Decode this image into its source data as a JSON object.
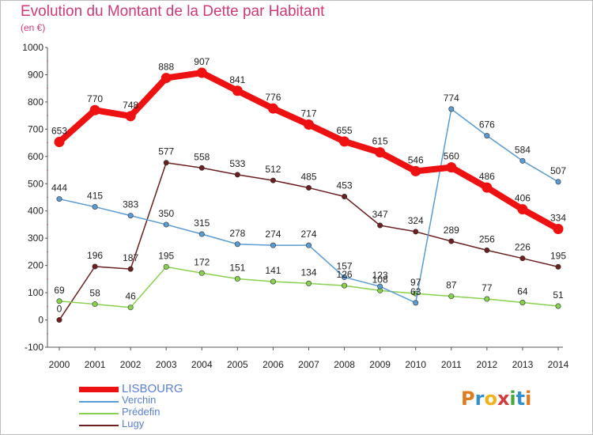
{
  "header": {
    "title": "Evolution du Montant de la Dette par Habitant",
    "subtitle": "(en €)"
  },
  "logo": {
    "text": "Proxiti",
    "letters": [
      "P",
      "r",
      "o",
      "x",
      "i",
      "t",
      "i"
    ],
    "colors": [
      "#e07a1f",
      "#2f8fd1",
      "#f2b21c",
      "#d63b3b",
      "#47a83a",
      "#2f8fd1",
      "#e07a1f"
    ]
  },
  "chart_data": {
    "type": "line",
    "x": [
      "2000",
      "2001",
      "2002",
      "2003",
      "2004",
      "2005",
      "2006",
      "2007",
      "2008",
      "2009",
      "2010",
      "2011",
      "2012",
      "2013",
      "2014"
    ],
    "ylim": [
      -100,
      1000
    ],
    "yticks": [
      -100,
      0,
      100,
      200,
      300,
      400,
      500,
      600,
      700,
      800,
      900,
      1000
    ],
    "grid": false,
    "legend_position": "bottom-left",
    "series": [
      {
        "name": "LISBOURG",
        "color": "#ee1111",
        "values": [
          653,
          770,
          748,
          888,
          907,
          841,
          776,
          717,
          655,
          615,
          546,
          560,
          486,
          406,
          334
        ],
        "labels": [
          "653",
          "770",
          "748",
          "888",
          "907",
          "841",
          "776",
          "717",
          "655",
          "615",
          "546",
          "560",
          "486",
          "406",
          "334"
        ]
      },
      {
        "name": "Verchin",
        "color": "#5a9bd3",
        "values": [
          444,
          415,
          383,
          350,
          315,
          278,
          274,
          274,
          157,
          123,
          63,
          774,
          676,
          584,
          507
        ],
        "labels": [
          "444",
          "415",
          "383",
          "350",
          "315",
          "278",
          "274",
          "274",
          "157",
          "123",
          "63",
          "774",
          "676",
          "584",
          "507"
        ]
      },
      {
        "name": "Prédefin",
        "color": "#88d14f",
        "values": [
          69,
          58,
          46,
          195,
          172,
          151,
          141,
          134,
          126,
          108,
          97,
          87,
          77,
          64,
          51
        ],
        "labels": [
          "69",
          "58",
          "46",
          "195",
          "172",
          "151",
          "141",
          "134",
          "126",
          "108",
          "97",
          "87",
          "77",
          "64",
          "51"
        ]
      },
      {
        "name": "Lugy",
        "color": "#6b1f1f",
        "values": [
          0,
          196,
          187,
          577,
          558,
          533,
          512,
          485,
          453,
          347,
          324,
          289,
          256,
          226,
          195
        ],
        "labels": [
          "0",
          "196",
          "187",
          "577",
          "558",
          "533",
          "512",
          "485",
          "453",
          "347",
          "324",
          "289",
          "256",
          "226",
          "195"
        ]
      }
    ]
  }
}
